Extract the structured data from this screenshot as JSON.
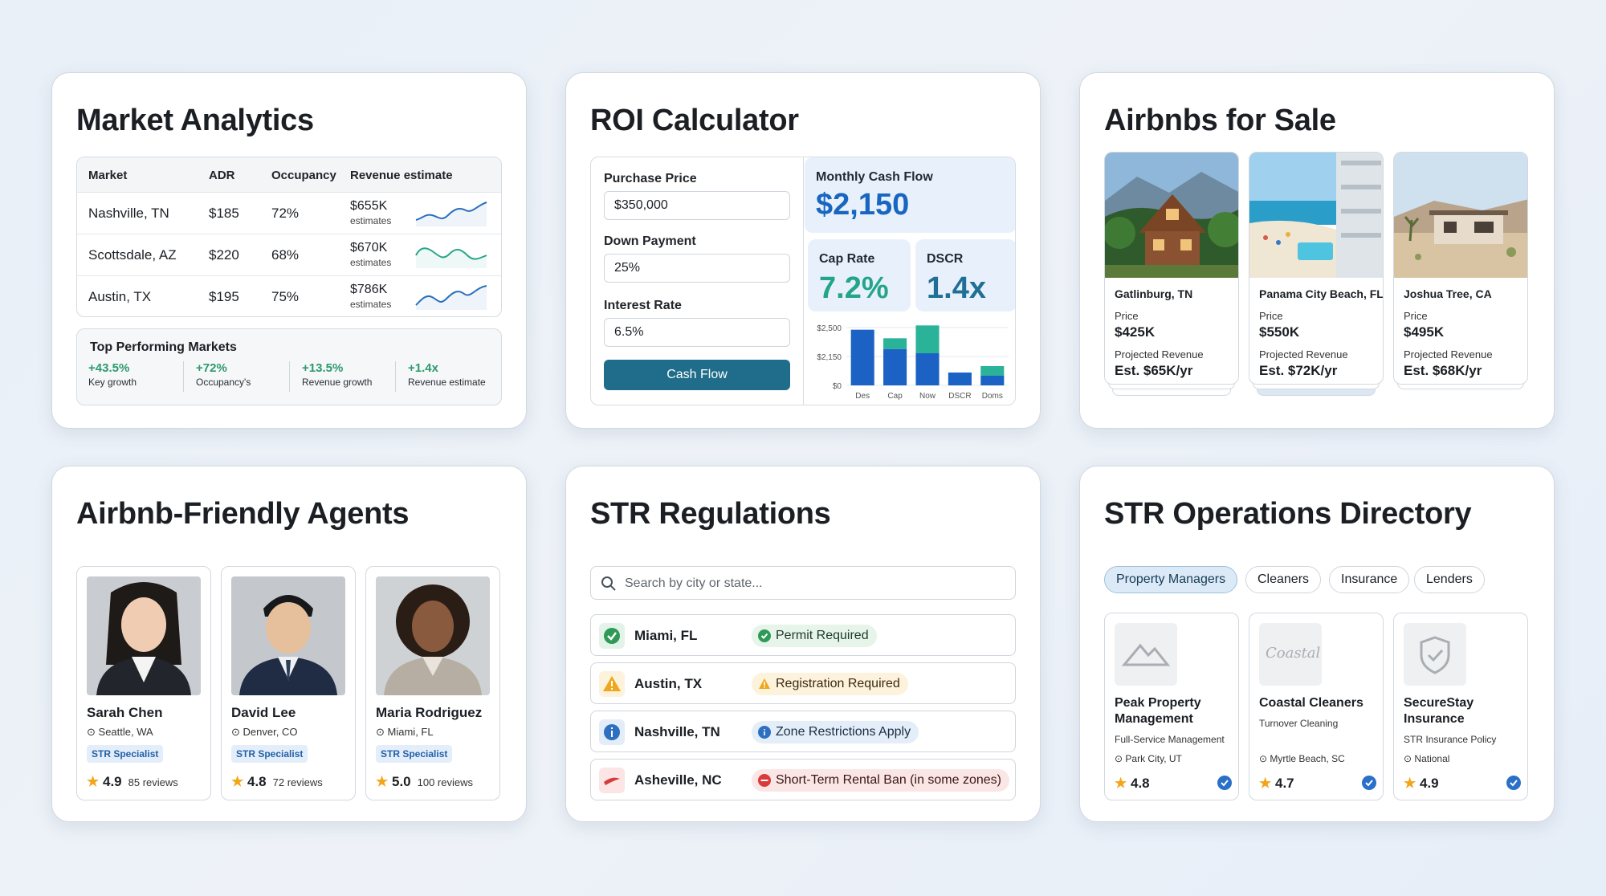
{
  "market": {
    "title": "Market Analytics",
    "headers": [
      "Market",
      "ADR",
      "Occupancy",
      "Revenue estimate"
    ],
    "rows": [
      {
        "market": "Nashville, TN",
        "adr": "$185",
        "occ": "72%",
        "rev": "$655K",
        "rev_sub": "estimates"
      },
      {
        "market": "Scottsdale, AZ",
        "adr": "$220",
        "occ": "68%",
        "rev": "$670K",
        "rev_sub": "estimates"
      },
      {
        "market": "Austin, TX",
        "adr": "$195",
        "occ": "75%",
        "rev": "$786K",
        "rev_sub": "estimates"
      }
    ],
    "top_title": "Top Performing Markets",
    "top": [
      {
        "value": "+43.5%",
        "label": "Key growth"
      },
      {
        "value": "+72%",
        "label": "Occupancy's"
      },
      {
        "value": "+13.5%",
        "label": "Revenue growth"
      },
      {
        "value": "+1.4x",
        "label": "Revenue estimate"
      }
    ]
  },
  "roi": {
    "title": "ROI Calculator",
    "purchase_label": "Purchase Price",
    "purchase_value": "$350,000",
    "down_label": "Down Payment",
    "down_value": "25%",
    "rate_label": "Interest Rate",
    "rate_value": "6.5%",
    "button": "Cash Flow",
    "cashflow_label": "Monthly Cash Flow",
    "cashflow_value": "$2,150",
    "cap_label": "Cap Rate",
    "cap_value": "7.2%",
    "dscr_label": "DSCR",
    "dscr_value": "1.4x",
    "accent": "#1f6d8a"
  },
  "chart_data": {
    "type": "bar",
    "categories": [
      "Des",
      "Cap",
      "Now",
      "DSCR",
      "Doms"
    ],
    "series": [
      {
        "values": [
          2600,
          1700,
          1500,
          600,
          450
        ],
        "color": "#1b62c4"
      },
      {
        "values": [
          0,
          500,
          1300,
          0,
          450
        ],
        "color": "#2bb39a"
      }
    ],
    "y_ticks": [
      "$2,500",
      "$2,150",
      "$0"
    ],
    "ylim": [
      0,
      2700
    ]
  },
  "listings": {
    "title": "Airbnbs for Sale",
    "price_label": "Price",
    "revenue_label": "Projected Revenue",
    "items": [
      {
        "city": "Gatlinburg, TN",
        "price": "$425K",
        "revenue": "Est. $65K/yr"
      },
      {
        "city": "Panama City Beach, FL",
        "price": "$550K",
        "revenue": "Est. $72K/yr"
      },
      {
        "city": "Joshua Tree, CA",
        "price": "$495K",
        "revenue": "Est. $68K/yr"
      }
    ]
  },
  "agents": {
    "title": "Airbnb-Friendly Agents",
    "badge": "STR Specialist",
    "items": [
      {
        "name": "Sarah Chen",
        "location": "Seattle, WA",
        "rating": "4.9",
        "reviews": "85 reviews"
      },
      {
        "name": "David Lee",
        "location": "Denver, CO",
        "rating": "4.8",
        "reviews": "72 reviews"
      },
      {
        "name": "Maria Rodriguez",
        "location": "Miami, FL",
        "rating": "5.0",
        "reviews": "100 reviews"
      }
    ]
  },
  "regs": {
    "title": "STR Regulations",
    "search_placeholder": "Search by city or state...",
    "items": [
      {
        "city": "Miami, FL",
        "status": "Permit Required"
      },
      {
        "city": "Austin, TX",
        "status": "Registration Required"
      },
      {
        "city": "Nashville, TN",
        "status": "Zone Restrictions Apply"
      },
      {
        "city": "Asheville, NC",
        "status": "Short-Term Rental Ban (in some zones)"
      }
    ]
  },
  "ops": {
    "title": "STR Operations Directory",
    "tabs": [
      "Property Managers",
      "Cleaners",
      "Insurance",
      "Lenders"
    ],
    "items": [
      {
        "name": "Peak Property Management",
        "desc": "Full-Service Management",
        "location": "Park City, UT",
        "rating": "4.8"
      },
      {
        "name": "Coastal Cleaners",
        "logo_text": "Coastal",
        "desc": "Turnover Cleaning",
        "location": "Myrtle Beach, SC",
        "rating": "4.7"
      },
      {
        "name": "SecureStay Insurance",
        "desc": "STR Insurance Policy",
        "location": "National",
        "rating": "4.9"
      }
    ]
  }
}
